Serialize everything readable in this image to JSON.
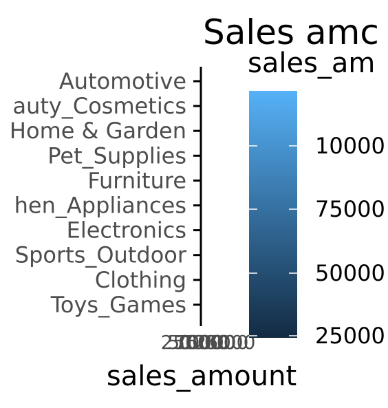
{
  "chart_data": {
    "type": "bar",
    "title": "Sales amc",
    "xlabel": "sales_amount",
    "ylabel": "",
    "categories": [
      "Automotive",
      "auty_Cosmetics",
      "Home & Garden",
      "Pet_Supplies",
      "Furniture",
      "hen_Appliances",
      "Electronics",
      "Sports_Outdoor",
      "Clothing",
      "Toys_Games"
    ],
    "x_tick_labels": [
      "0",
      "25000",
      "50000",
      "75000",
      "100000",
      "125000"
    ],
    "legend": {
      "title": "sales_am",
      "labels": [
        "10000",
        "75000",
        "50000",
        "25000"
      ],
      "placement": "right",
      "color_low": "#132B43",
      "color_high": "#56B1F7"
    },
    "grid": false
  }
}
